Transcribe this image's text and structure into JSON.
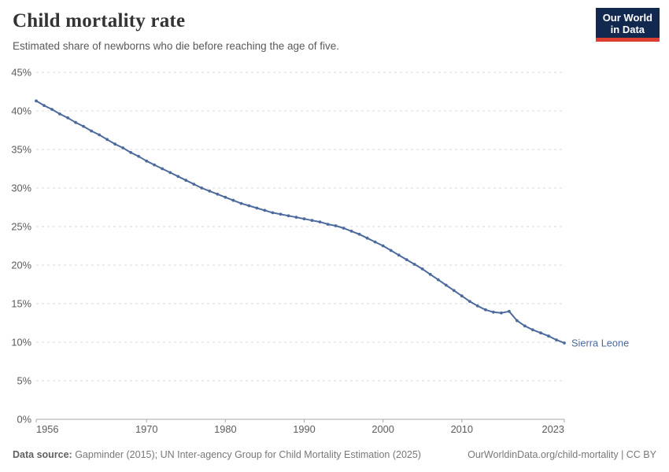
{
  "header": {
    "title": "Child mortality rate",
    "subtitle": "Estimated share of newborns who die before reaching the age of five.",
    "logo": {
      "line1": "Our World",
      "line2": "in Data",
      "bg_color": "#12294f",
      "bar_color": "#dc3e32"
    }
  },
  "chart_data": {
    "type": "line",
    "title": "Child mortality rate",
    "subtitle": "Estimated share of newborns who die before reaching the age of five.",
    "xlim": [
      1956,
      2023
    ],
    "ylim": [
      0,
      45
    ],
    "x_ticks": [
      1956,
      1970,
      1980,
      1990,
      2000,
      2010,
      2023
    ],
    "y_ticks": [
      0,
      5,
      10,
      15,
      20,
      25,
      30,
      35,
      40,
      45
    ],
    "y_unit": "%",
    "grid": "horizontal-dashed",
    "legend_position": "end-of-line-label",
    "series": [
      {
        "name": "Sierra Leone",
        "color": "#4C6A9C",
        "x_start": 1956,
        "x_end": 2023,
        "values": [
          41.3,
          40.7,
          40.2,
          39.6,
          39.1,
          38.5,
          38.0,
          37.4,
          36.9,
          36.3,
          35.7,
          35.2,
          34.6,
          34.1,
          33.5,
          33.0,
          32.5,
          32.0,
          31.5,
          31.0,
          30.5,
          30.0,
          29.6,
          29.2,
          28.8,
          28.4,
          28.0,
          27.7,
          27.4,
          27.1,
          26.8,
          26.6,
          26.4,
          26.2,
          26.0,
          25.8,
          25.6,
          25.3,
          25.1,
          24.8,
          24.4,
          24.0,
          23.5,
          23.0,
          22.5,
          21.9,
          21.3,
          20.7,
          20.1,
          19.5,
          18.8,
          18.1,
          17.4,
          16.7,
          16.0,
          15.3,
          14.7,
          14.2,
          13.9,
          13.8,
          14.0,
          12.8,
          12.1,
          11.6,
          11.2,
          10.8,
          10.3,
          9.9
        ]
      }
    ],
    "colors": {
      "gridline": "#dadada",
      "axis_line": "#a8a8a8",
      "tick_label": "#5b5b5b"
    }
  },
  "footer": {
    "datasource_label": "Data source:",
    "datasource_text": " Gapminder (2015); UN Inter-agency Group for Child Mortality Estimation (2025)",
    "link": "OurWorldinData.org/child-mortality | CC BY"
  }
}
